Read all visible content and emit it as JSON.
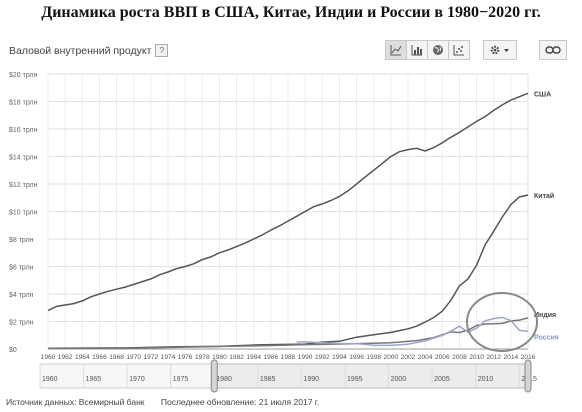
{
  "caption": "Динамика роста ВВП в США, Китае, Индии и России в 1980−2020 гг.",
  "widget": {
    "title": "Валовой внутренний продукт",
    "help_glyph": "?",
    "toolbar_icons": [
      "line-chart-icon",
      "bar-chart-icon",
      "globe-map-icon",
      "scatter-chart-icon"
    ],
    "settings_icon": "gear-icon",
    "link_icon": "link-icon"
  },
  "footer": {
    "source": "Источник данных: Всемирный банк",
    "updated": "Последнее обновление: 21 июля 2017 г."
  },
  "chart_data": {
    "type": "line",
    "title": "",
    "xlabel": "",
    "ylabel": "",
    "xlim": [
      1960,
      2016
    ],
    "ylim": [
      0,
      20
    ],
    "y_unit": "трлн",
    "x_ticks": [
      "1960",
      "1962",
      "1964",
      "1966",
      "1968",
      "1970",
      "1972",
      "1974",
      "1976",
      "1978",
      "1980",
      "1982",
      "1984",
      "1986",
      "1988",
      "1990",
      "1992",
      "1994",
      "1996",
      "1998",
      "2000",
      "2002",
      "2004",
      "2006",
      "2008",
      "2010",
      "2012",
      "2014",
      "2016"
    ],
    "y_ticks": [
      "$0",
      "$2 трлн",
      "$4 трлн",
      "$6 трлн",
      "$8 трлн",
      "$10 трлн",
      "$12 трлн",
      "$14 трлн",
      "$16 трлн",
      "$18 трлн",
      "$20 трлн"
    ],
    "grid": true,
    "legend": "right-end labels",
    "series": [
      {
        "name": "США",
        "color": "#555555",
        "x": [
          1960,
          1961,
          1962,
          1963,
          1964,
          1965,
          1966,
          1967,
          1968,
          1969,
          1970,
          1971,
          1972,
          1973,
          1974,
          1975,
          1976,
          1977,
          1978,
          1979,
          1980,
          1981,
          1982,
          1983,
          1984,
          1985,
          1986,
          1987,
          1988,
          1989,
          1990,
          1991,
          1992,
          1993,
          1994,
          1995,
          1996,
          1997,
          1998,
          1999,
          2000,
          2001,
          2002,
          2003,
          2004,
          2005,
          2006,
          2007,
          2008,
          2009,
          2010,
          2011,
          2012,
          2013,
          2014,
          2015,
          2016
        ],
        "values": [
          2.8,
          3.1,
          3.2,
          3.3,
          3.5,
          3.8,
          4.0,
          4.2,
          4.35,
          4.5,
          4.7,
          4.9,
          5.1,
          5.4,
          5.6,
          5.85,
          6.0,
          6.2,
          6.5,
          6.7,
          7.0,
          7.2,
          7.45,
          7.7,
          8.0,
          8.3,
          8.65,
          8.95,
          9.3,
          9.65,
          10.0,
          10.35,
          10.55,
          10.8,
          11.1,
          11.5,
          12.0,
          12.5,
          13.0,
          13.5,
          14.0,
          14.35,
          14.5,
          14.6,
          14.4,
          14.65,
          15.0,
          15.4,
          15.75,
          16.15,
          16.55,
          16.9,
          17.35,
          17.75,
          18.1,
          18.35,
          18.6
        ]
      },
      {
        "name": "Китай",
        "color": "#555555",
        "x": [
          1960,
          1965,
          1970,
          1975,
          1980,
          1985,
          1990,
          1992,
          1994,
          1996,
          1998,
          2000,
          2001,
          2002,
          2003,
          2004,
          2005,
          2006,
          2007,
          2008,
          2009,
          2010,
          2011,
          2012,
          2013,
          2014,
          2015,
          2016
        ],
        "values": [
          0.06,
          0.07,
          0.09,
          0.16,
          0.19,
          0.31,
          0.36,
          0.5,
          0.56,
          0.86,
          1.03,
          1.21,
          1.34,
          1.47,
          1.66,
          1.96,
          2.29,
          2.75,
          3.55,
          4.59,
          5.1,
          6.1,
          7.57,
          8.56,
          9.6,
          10.5,
          11.06,
          11.2
        ]
      },
      {
        "name": "Индия",
        "color": "#777777",
        "x": [
          1960,
          1970,
          1980,
          1985,
          1990,
          1995,
          2000,
          2003,
          2005,
          2007,
          2008,
          2009,
          2010,
          2011,
          2012,
          2013,
          2014,
          2015,
          2016
        ],
        "values": [
          0.04,
          0.06,
          0.19,
          0.24,
          0.32,
          0.37,
          0.46,
          0.61,
          0.83,
          1.24,
          1.2,
          1.37,
          1.71,
          1.82,
          1.83,
          1.86,
          2.04,
          2.1,
          2.26
        ]
      },
      {
        "name": "Россия",
        "color": "#9aa7c8",
        "x": [
          1989,
          1990,
          1992,
          1994,
          1996,
          1998,
          2000,
          2002,
          2004,
          2006,
          2007,
          2008,
          2009,
          2010,
          2011,
          2012,
          2013,
          2014,
          2015,
          2016
        ],
        "values": [
          0.5,
          0.52,
          0.46,
          0.4,
          0.39,
          0.27,
          0.26,
          0.35,
          0.59,
          0.99,
          1.3,
          1.66,
          1.22,
          1.52,
          2.05,
          2.21,
          2.3,
          2.06,
          1.36,
          1.28
        ]
      }
    ],
    "annotation": "circle around 2008–2016 region",
    "range_slider": {
      "ticks": [
        "1960",
        "1965",
        "1970",
        "1975",
        "1980",
        "1985",
        "1990",
        "1995",
        "2000",
        "2005",
        "2010",
        "2015"
      ],
      "selection": [
        1980,
        2016
      ]
    }
  }
}
